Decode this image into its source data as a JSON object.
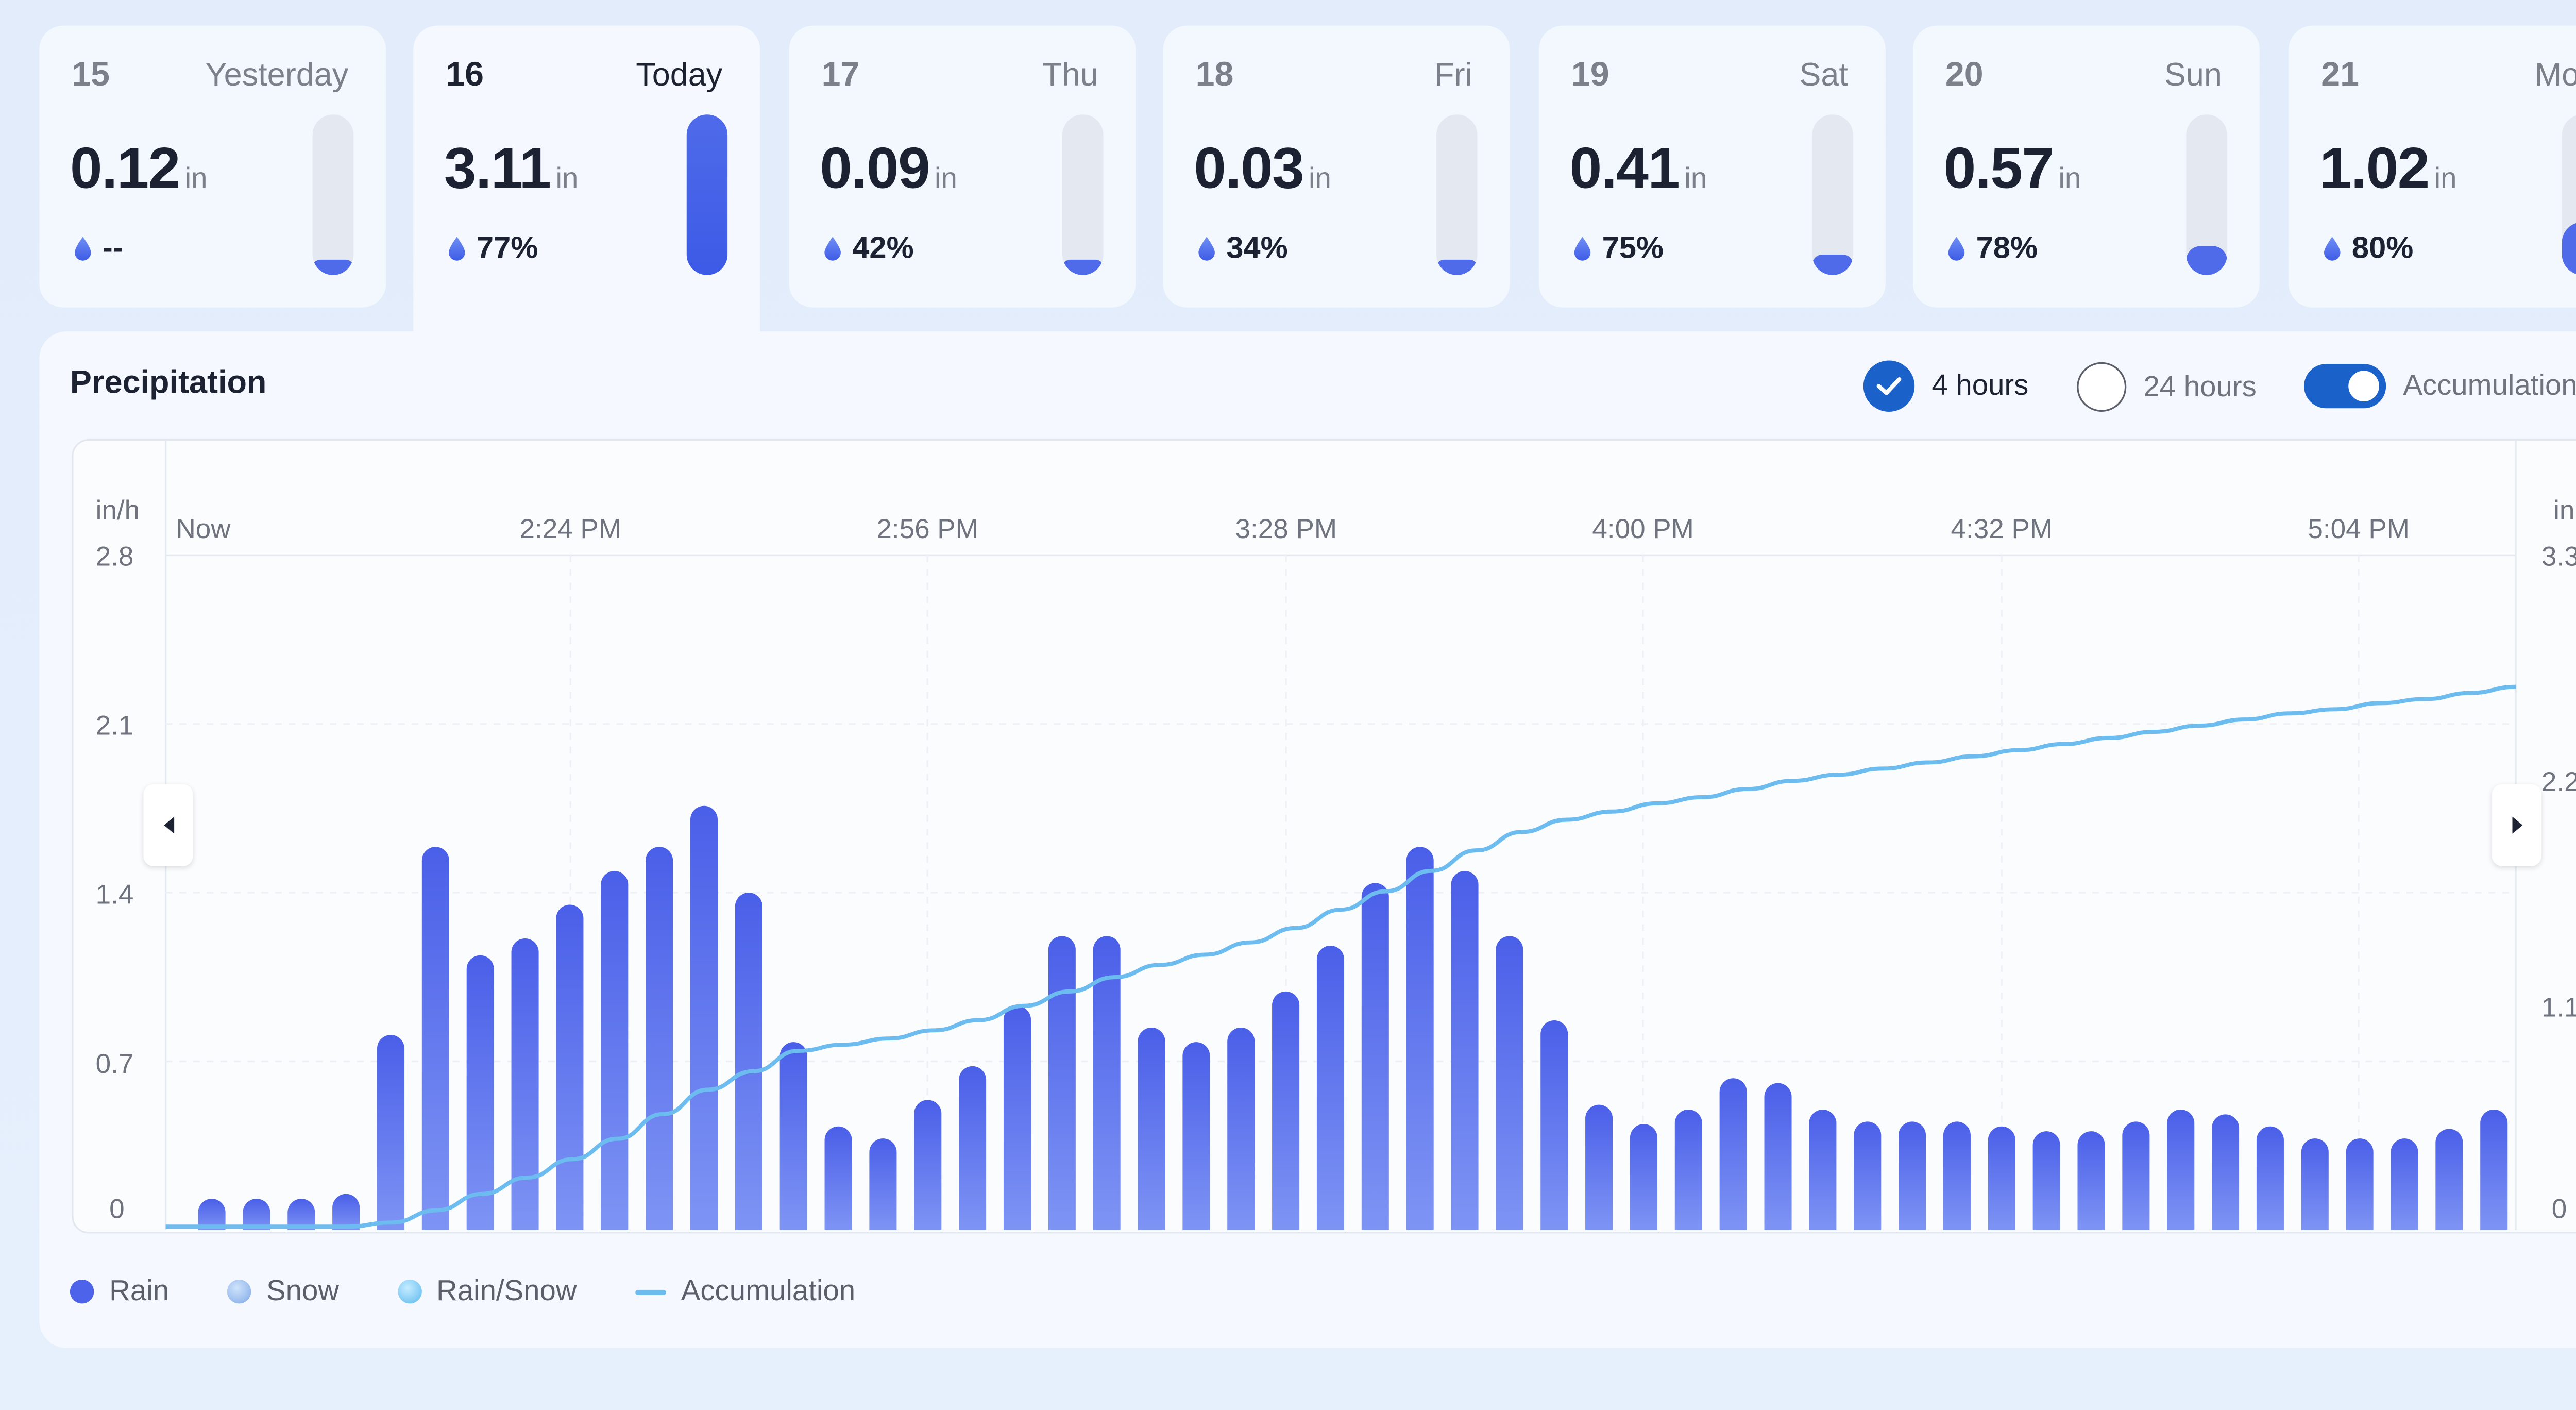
{
  "days": [
    {
      "day": "15",
      "name": "Yesterday",
      "amount": "0.12",
      "unit": "in",
      "prob": "--",
      "level": 0.05,
      "today": false
    },
    {
      "day": "16",
      "name": "Today",
      "amount": "3.11",
      "unit": "in",
      "prob": "77%",
      "level": 1.0,
      "today": true
    },
    {
      "day": "17",
      "name": "Thu",
      "amount": "0.09",
      "unit": "in",
      "prob": "42%",
      "level": 0.04,
      "today": false
    },
    {
      "day": "18",
      "name": "Fri",
      "amount": "0.03",
      "unit": "in",
      "prob": "34%",
      "level": 0.02,
      "today": false
    },
    {
      "day": "19",
      "name": "Sat",
      "amount": "0.41",
      "unit": "in",
      "prob": "75%",
      "level": 0.13,
      "today": false
    },
    {
      "day": "20",
      "name": "Sun",
      "amount": "0.57",
      "unit": "in",
      "prob": "78%",
      "level": 0.18,
      "today": false
    },
    {
      "day": "21",
      "name": "Mon",
      "amount": "1.02",
      "unit": "in",
      "prob": "80%",
      "level": 0.33,
      "today": false
    }
  ],
  "panel": {
    "title": "Precipitation",
    "options": {
      "four_hours": "4 hours",
      "twenty_four_hours": "24 hours",
      "accumulation": "Accumulation"
    }
  },
  "legend": {
    "rain": "Rain",
    "snow": "Snow",
    "rain_snow": "Rain/Snow",
    "accumulation": "Accumulation"
  },
  "colors": {
    "rain": "#4d63ea",
    "snow": "#8fb8ec",
    "rain_snow": "#7cc8f2",
    "accumulation": "#6cbcf0",
    "accent": "#1a62c9"
  },
  "chart_data": {
    "type": "bar",
    "y_left_unit": "in/h",
    "y_right_unit": "in",
    "y_left_ticks": [
      "2.8",
      "2.1",
      "1.4",
      "0.7",
      "0"
    ],
    "y_right_ticks": [
      "3.3",
      "2.2",
      "1.1",
      "0"
    ],
    "ylim_left": [
      0,
      2.8
    ],
    "ylim_right": [
      0,
      3.3
    ],
    "x_tick_labels": [
      "Now",
      "2:24 PM",
      "2:56 PM",
      "3:28 PM",
      "4:00 PM",
      "4:32 PM",
      "5:04 PM"
    ],
    "series": [
      {
        "name": "Rain",
        "values": [
          0.13,
          0.13,
          0.13,
          0.15,
          0.81,
          1.59,
          1.14,
          1.21,
          1.35,
          1.49,
          1.59,
          1.76,
          1.4,
          0.78,
          0.43,
          0.38,
          0.54,
          0.68,
          0.93,
          1.22,
          1.22,
          0.84,
          0.78,
          0.84,
          0.99,
          1.18,
          1.44,
          1.59,
          1.49,
          1.22,
          0.87,
          0.52,
          0.44,
          0.5,
          0.63,
          0.61,
          0.5,
          0.45,
          0.45,
          0.45,
          0.43,
          0.41,
          0.41,
          0.45,
          0.5,
          0.48,
          0.43,
          0.38,
          0.38,
          0.38,
          0.42,
          0.5
        ]
      },
      {
        "name": "Accumulation",
        "values": [
          0,
          0,
          0,
          0,
          0,
          0.02,
          0.08,
          0.16,
          0.24,
          0.33,
          0.43,
          0.55,
          0.67,
          0.76,
          0.86,
          0.89,
          0.92,
          0.96,
          1.01,
          1.08,
          1.15,
          1.22,
          1.28,
          1.33,
          1.39,
          1.46,
          1.55,
          1.64,
          1.74,
          1.84,
          1.93,
          1.99,
          2.03,
          2.07,
          2.1,
          2.14,
          2.18,
          2.21,
          2.24,
          2.27,
          2.3,
          2.33,
          2.36,
          2.39,
          2.42,
          2.45,
          2.48,
          2.51,
          2.53,
          2.56,
          2.58,
          2.61,
          2.64
        ]
      }
    ],
    "grid": true,
    "legend_position": "bottom-left"
  }
}
